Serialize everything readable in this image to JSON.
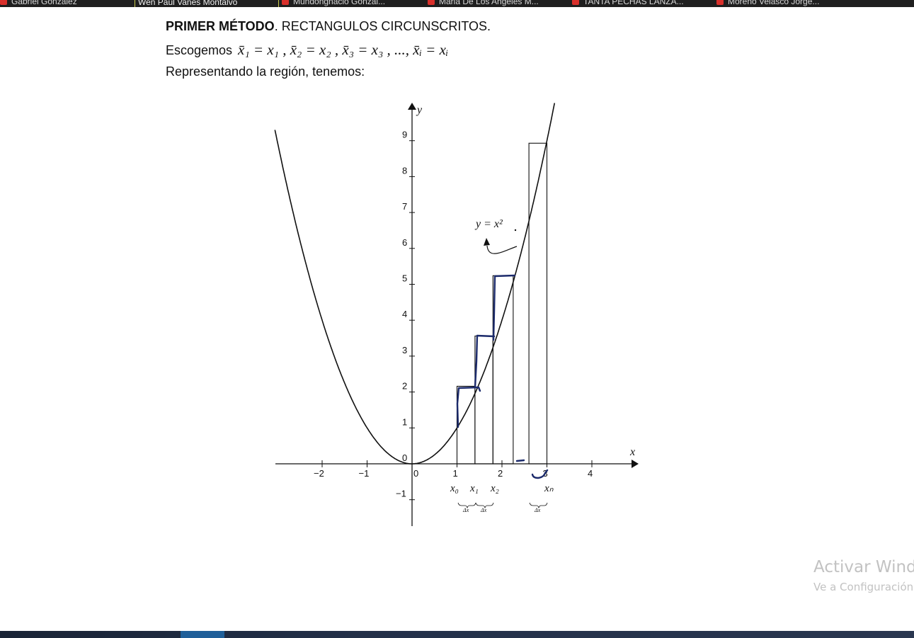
{
  "browser_tabs": [
    {
      "label": "Gabriel Gonzalez",
      "icon": "pdf-icon",
      "active": false
    },
    {
      "label": "Wen Paul Vanes Montalvo",
      "icon": "",
      "active": true
    },
    {
      "label": "Mundongnacio Gonzal...",
      "icon": "pdf-icon",
      "active": false
    },
    {
      "label": "Maria De Los Angeles M...",
      "icon": "pdf-icon",
      "active": false
    },
    {
      "label": "TANTA PECHAS LANZA...",
      "icon": "pdf-icon",
      "active": false
    },
    {
      "label": "Moreno Velasco Jorge...",
      "icon": "pdf-icon",
      "active": false
    }
  ],
  "document": {
    "heading_bold": "PRIMER MÉTODO",
    "heading_rest": ". RECTANGULOS CIRCUNSCRITOS.",
    "choose_label": "Escogemos",
    "choose_formula": "x̄₁ = x₁ , x̄₂ = x₂ , x̄₃ = x₃ , ..., x̄ᵢ = xᵢ",
    "region_text": "Representando la región, tenemos:"
  },
  "graph": {
    "function_label": "y = x²",
    "x_axis_label": "x",
    "y_axis_label": "y",
    "x_ticks": [
      -2,
      -1,
      0,
      1,
      2,
      3,
      4
    ],
    "y_ticks": [
      -1,
      0,
      1,
      2,
      3,
      4,
      5,
      6,
      7,
      8,
      9
    ],
    "partition_labels": [
      "x₀",
      "x₁",
      "x₂",
      "xₙ"
    ],
    "delta_label": "Δx",
    "rectangles": [
      {
        "x0": 1.0,
        "x1": 1.4,
        "height": 2.16
      },
      {
        "x0": 1.4,
        "x1": 1.8,
        "height": 3.56
      },
      {
        "x0": 1.8,
        "x1": 2.25,
        "height": 5.24
      },
      {
        "x0": 2.6,
        "x1": 3.0,
        "height": 8.93
      }
    ],
    "curve_color": "#111111",
    "annotation_color": "#1b2a6b"
  },
  "watermark": {
    "title": "Activar Wind",
    "subtitle": "Ve a Configuración"
  },
  "colors": {
    "taskbar": "#1a2436",
    "taskbar_active": "#1f5f99",
    "topbar": "#1f1f1f"
  }
}
